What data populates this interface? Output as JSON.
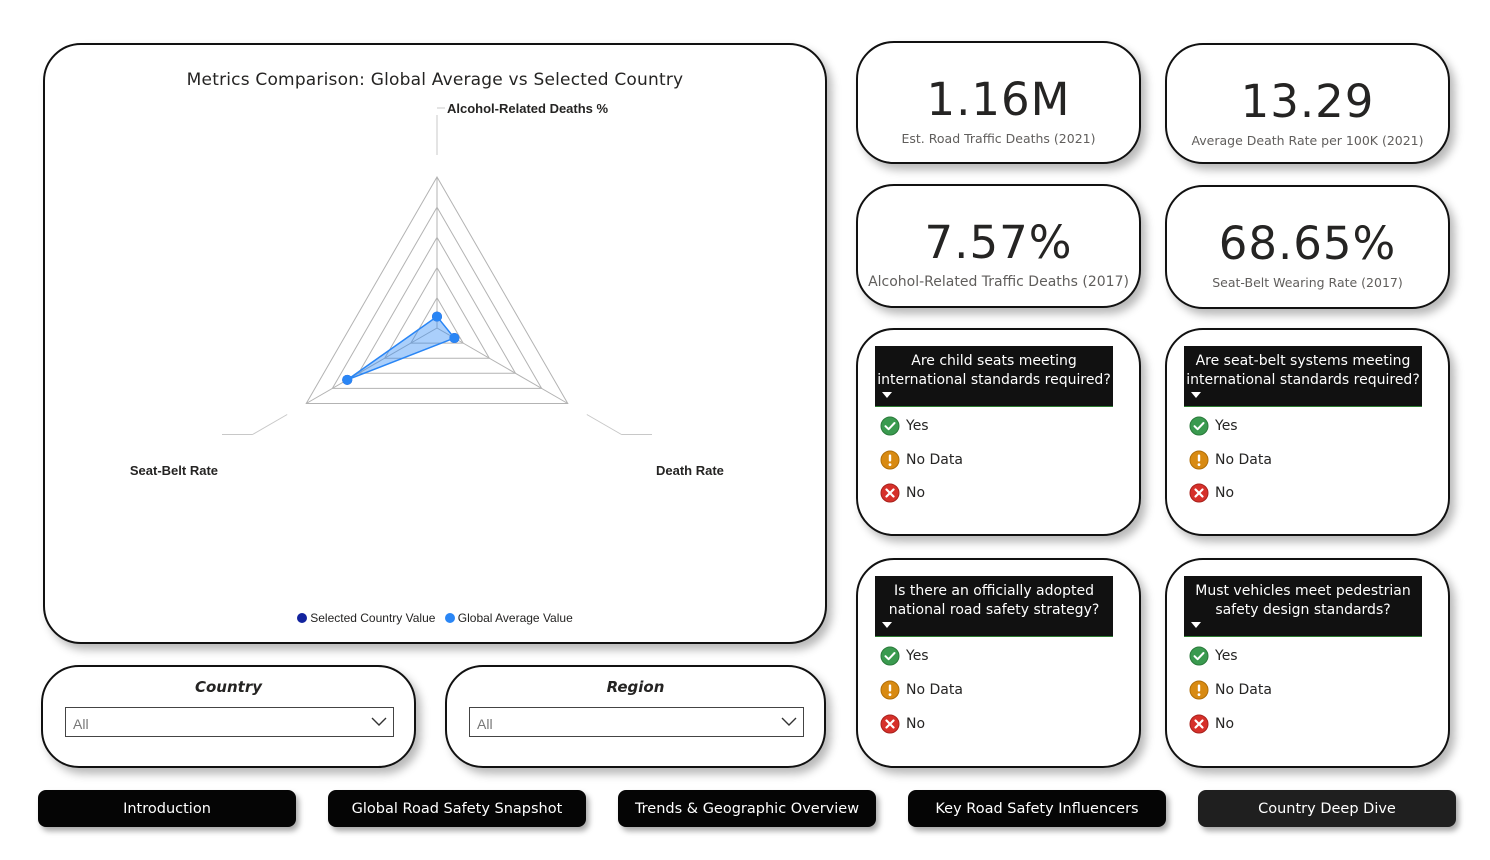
{
  "chart_data": {
    "type": "radar",
    "title": "Metrics Comparison: Global Average vs Selected Country",
    "axes": [
      "Alcohol-Related Deaths %",
      "Death Rate",
      "Seat-Belt Rate"
    ],
    "rlim": [
      0,
      100
    ],
    "rings": 5,
    "series": [
      {
        "name": "Selected Country Value",
        "color": "#12239e",
        "values": [
          7.57,
          13.29,
          68.65
        ]
      },
      {
        "name": "Global Average Value",
        "color": "#2a86f5",
        "values": [
          7.57,
          13.29,
          68.65
        ]
      }
    ],
    "legend_position": "bottom"
  },
  "kpis": [
    {
      "value": "1.16M",
      "label": "Est. Road Traffic Deaths (2021)"
    },
    {
      "value": "13.29",
      "label": "Average Death Rate per 100K (2021)"
    },
    {
      "value": "7.57%",
      "label": "Alcohol-Related Traffic Deaths (2017)"
    },
    {
      "value": "68.65%",
      "label": "Seat-Belt Wearing Rate (2017)"
    }
  ],
  "questions": [
    {
      "title": "Are child seats meeting international standards required?"
    },
    {
      "title": "Are seat-belt systems meeting international standards required?"
    },
    {
      "title": "Is there an officially adopted national road safety strategy?"
    },
    {
      "title": "Must vehicles meet pedestrian safety design standards?"
    }
  ],
  "options": {
    "yes": "Yes",
    "no_data": "No Data",
    "no": "No"
  },
  "slicers": {
    "country": {
      "title": "Country",
      "value": "All"
    },
    "region": {
      "title": "Region",
      "value": "All"
    }
  },
  "nav": [
    "Introduction",
    "Global Road Safety Snapshot",
    "Trends & Geographic Overview",
    "Key Road Safety Influencers",
    "Country Deep Dive"
  ],
  "colors": {
    "yes": "#3a9a4f",
    "no_data": "#d88a12",
    "no": "#d6302a"
  },
  "icons": {
    "yes": "check-circle-icon",
    "no_data": "exclamation-circle-icon",
    "no": "x-circle-icon"
  }
}
